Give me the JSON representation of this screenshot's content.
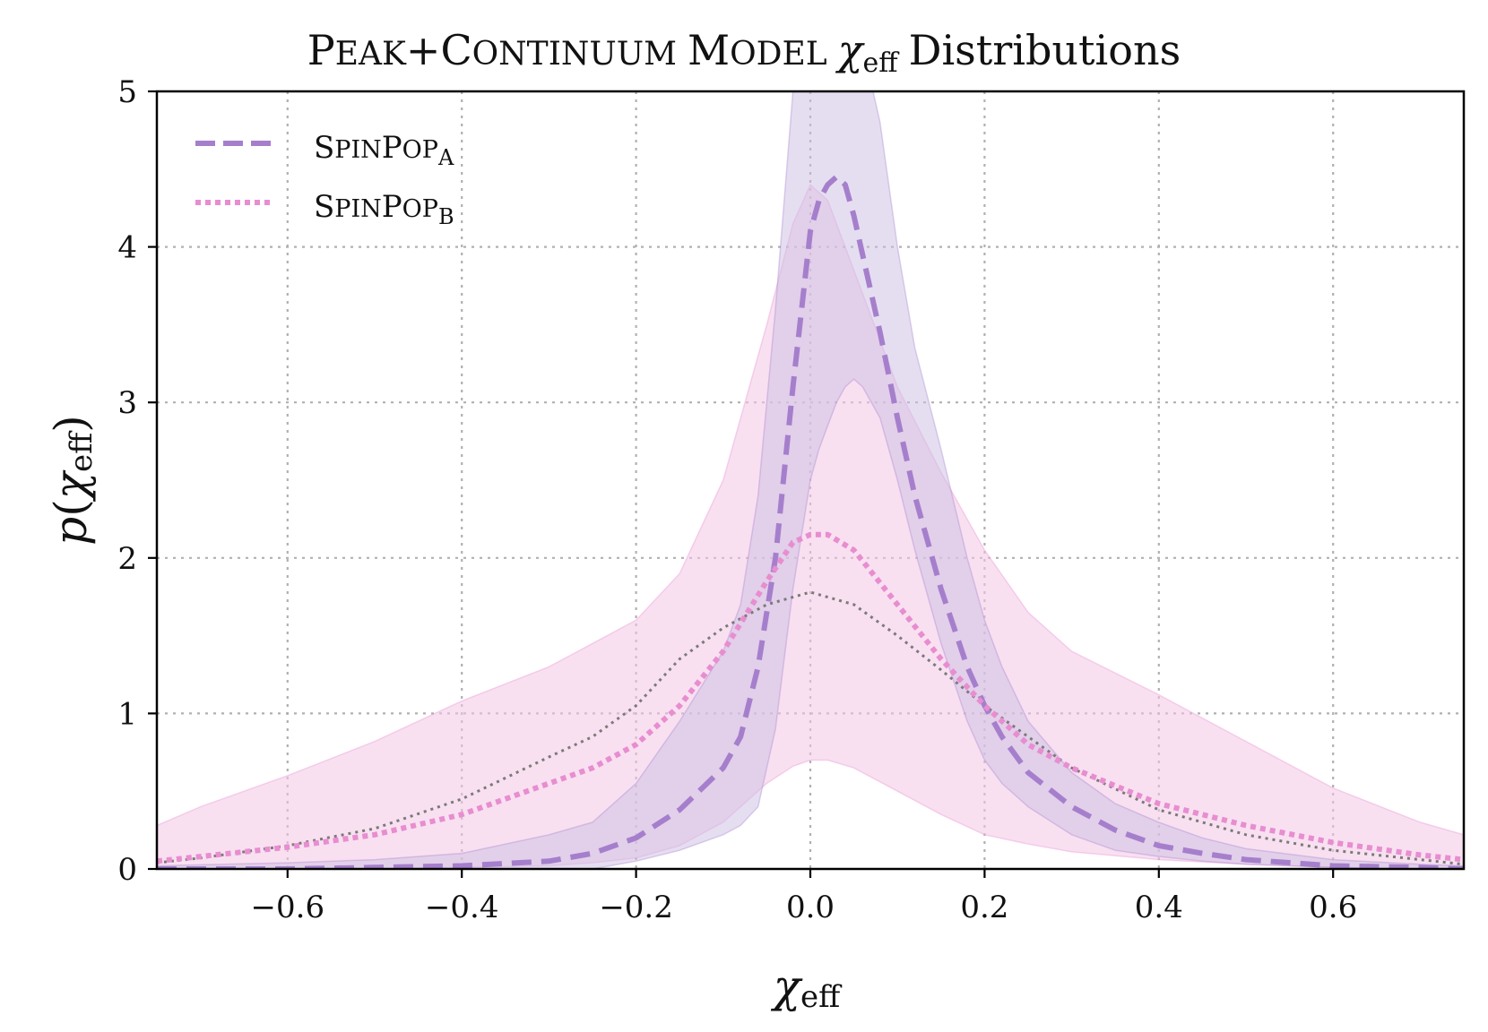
{
  "chart_data": {
    "type": "line",
    "title": {
      "part1_initial": "P",
      "part1_rest": "EAK",
      "plus": "+",
      "part2_initial": "C",
      "part2_rest": "ONTINUUM",
      "part3_initial": "M",
      "part3_rest": "ODEL",
      "chi": "χ",
      "chi_sub": "eff",
      "suffix": "Distributions"
    },
    "xlabel": {
      "chi": "χ",
      "sub": "eff"
    },
    "ylabel": {
      "p": "p",
      "open": "(",
      "chi": "χ",
      "sub": "eff",
      "close": ")"
    },
    "xlim": [
      -0.75,
      0.75
    ],
    "ylim": [
      0,
      5
    ],
    "xticks": [
      -0.6,
      -0.4,
      -0.2,
      0.0,
      0.2,
      0.4,
      0.6
    ],
    "xtick_labels": [
      "−0.6",
      "−0.4",
      "−0.2",
      "0.0",
      "0.2",
      "0.4",
      "0.6"
    ],
    "yticks": [
      0,
      1,
      2,
      3,
      4,
      5
    ],
    "ytick_labels": [
      "0",
      "1",
      "2",
      "3",
      "4",
      "5"
    ],
    "grid": true,
    "legend_position": "top-left",
    "colors": {
      "A": "#a57fcc",
      "B": "#e88dd0",
      "ref": "#7a7a7a",
      "band_A": "#cbbde3",
      "band_B": "#f2c6e6"
    },
    "series": [
      {
        "id": "A",
        "name_initial": "S",
        "name_mid": "PIN",
        "name_initial2": "P",
        "name_rest": "OP",
        "name_sub": "A",
        "style": "dashed",
        "x": [
          -0.75,
          -0.6,
          -0.5,
          -0.4,
          -0.3,
          -0.25,
          -0.2,
          -0.15,
          -0.1,
          -0.08,
          -0.06,
          -0.04,
          -0.02,
          0.0,
          0.01,
          0.02,
          0.03,
          0.04,
          0.05,
          0.06,
          0.08,
          0.1,
          0.12,
          0.15,
          0.18,
          0.2,
          0.22,
          0.25,
          0.3,
          0.35,
          0.4,
          0.45,
          0.5,
          0.6,
          0.7,
          0.75
        ],
        "median": [
          0.0,
          0.0,
          0.01,
          0.02,
          0.05,
          0.1,
          0.2,
          0.38,
          0.65,
          0.85,
          1.3,
          2.0,
          3.1,
          4.1,
          4.3,
          4.4,
          4.45,
          4.4,
          4.2,
          3.95,
          3.45,
          2.9,
          2.4,
          1.8,
          1.3,
          1.05,
          0.85,
          0.62,
          0.4,
          0.25,
          0.15,
          0.1,
          0.06,
          0.02,
          0.01,
          0.0
        ],
        "lower": [
          0.0,
          0.0,
          0.0,
          0.0,
          0.0,
          0.0,
          0.05,
          0.12,
          0.22,
          0.28,
          0.4,
          0.9,
          1.8,
          2.5,
          2.7,
          2.85,
          3.0,
          3.1,
          3.15,
          3.1,
          2.9,
          2.5,
          2.05,
          1.45,
          0.95,
          0.7,
          0.55,
          0.4,
          0.22,
          0.12,
          0.08,
          0.05,
          0.03,
          0.01,
          0.0,
          0.0
        ],
        "upper": [
          0.02,
          0.04,
          0.06,
          0.1,
          0.22,
          0.3,
          0.55,
          0.95,
          1.4,
          1.7,
          2.4,
          3.6,
          5.0,
          5.3,
          5.4,
          5.5,
          5.5,
          5.5,
          5.4,
          5.3,
          4.8,
          4.0,
          3.35,
          2.7,
          2.0,
          1.6,
          1.3,
          0.95,
          0.62,
          0.42,
          0.3,
          0.2,
          0.13,
          0.06,
          0.03,
          0.02
        ]
      },
      {
        "id": "B",
        "name_initial": "S",
        "name_mid": "PIN",
        "name_initial2": "P",
        "name_rest": "OP",
        "name_sub": "B",
        "style": "dotted",
        "x": [
          -0.75,
          -0.7,
          -0.6,
          -0.5,
          -0.4,
          -0.3,
          -0.25,
          -0.2,
          -0.15,
          -0.1,
          -0.05,
          -0.02,
          0.0,
          0.02,
          0.05,
          0.1,
          0.15,
          0.2,
          0.25,
          0.3,
          0.4,
          0.5,
          0.6,
          0.7,
          0.75
        ],
        "median": [
          0.05,
          0.08,
          0.14,
          0.22,
          0.35,
          0.55,
          0.65,
          0.8,
          1.05,
          1.4,
          1.85,
          2.1,
          2.15,
          2.15,
          2.05,
          1.7,
          1.35,
          1.05,
          0.8,
          0.65,
          0.42,
          0.28,
          0.17,
          0.09,
          0.06
        ],
        "lower": [
          0.0,
          0.0,
          0.0,
          0.0,
          0.01,
          0.02,
          0.04,
          0.07,
          0.15,
          0.3,
          0.55,
          0.66,
          0.7,
          0.7,
          0.65,
          0.5,
          0.35,
          0.22,
          0.16,
          0.11,
          0.06,
          0.03,
          0.01,
          0.0,
          0.0
        ],
        "upper": [
          0.28,
          0.4,
          0.6,
          0.82,
          1.08,
          1.3,
          1.45,
          1.6,
          1.9,
          2.5,
          3.5,
          4.15,
          4.4,
          4.3,
          3.85,
          3.1,
          2.55,
          2.05,
          1.65,
          1.4,
          1.12,
          0.82,
          0.52,
          0.3,
          0.22
        ]
      }
    ],
    "reference": {
      "id": "ref",
      "style": "dotted",
      "x": [
        -0.75,
        -0.7,
        -0.6,
        -0.5,
        -0.4,
        -0.3,
        -0.25,
        -0.2,
        -0.15,
        -0.1,
        -0.05,
        0.0,
        0.05,
        0.1,
        0.15,
        0.2,
        0.25,
        0.3,
        0.4,
        0.5,
        0.6,
        0.7,
        0.75
      ],
      "y": [
        0.04,
        0.07,
        0.15,
        0.26,
        0.45,
        0.72,
        0.85,
        1.05,
        1.35,
        1.55,
        1.7,
        1.78,
        1.7,
        1.5,
        1.28,
        1.05,
        0.85,
        0.65,
        0.38,
        0.22,
        0.12,
        0.06,
        0.03
      ]
    }
  }
}
